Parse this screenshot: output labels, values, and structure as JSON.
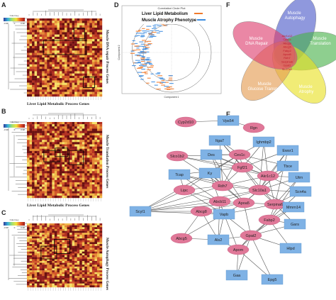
{
  "panels": {
    "A": {
      "letter": "A",
      "row_label": "Muscle DNA repair Process Genes",
      "col_label": "Liver Lipid Metabolic Process Genes"
    },
    "B": {
      "letter": "B",
      "row_label": "Muscle Translation Process Genes",
      "col_label": "Liver Lipid Metabolic Process Genes"
    },
    "C": {
      "letter": "C",
      "row_label": "Muscle Autophagy Process Genes",
      "col_label": "Liver Lipid Metabolic Process Genes"
    },
    "D": {
      "letter": "D",
      "title": "Correlation Circle Plot",
      "legend": [
        "Liver Lipid Metabolism",
        "Muscle Atrophy Phenotype"
      ],
      "xlabel": "Component 1",
      "ylabel": "Component 2"
    },
    "E": {
      "letter": "E"
    },
    "F": {
      "letter": "F"
    }
  },
  "colorkey": {
    "title": "Color key",
    "ticks": [
      "-0.98",
      "0",
      "0.98"
    ]
  },
  "colors": {
    "liver_node": "#e07898",
    "muscle_node": "#7fb2e5",
    "liver_legend": "#f07a2b",
    "muscle_legend": "#3d8de0"
  },
  "venn": {
    "sets": [
      {
        "name": "Muscle Autophagy",
        "color": "#4a58c8"
      },
      {
        "name": "Muscle Translation",
        "color": "#49b24a"
      },
      {
        "name": "Muscle Atrophy",
        "color": "#e8e022"
      },
      {
        "name": "Muscle Glucose Transport",
        "color": "#e39a4e"
      },
      {
        "name": "Muscle DNA Repair",
        "color": "#dd3d6e"
      }
    ],
    "center_genes": [
      "Akr1c12",
      "Ces1c",
      "Abcg8",
      "Abcg5",
      "Fabp2",
      "Apoa5",
      "Rdh7",
      "Serpina6",
      "Gpat2",
      "Slc10a1"
    ]
  },
  "network": {
    "nodes": [
      {
        "id": "Cyp2d10",
        "type": "liver"
      },
      {
        "id": "Vps54",
        "type": "muscle"
      },
      {
        "id": "Rgn",
        "type": "liver"
      },
      {
        "id": "Itga7",
        "type": "muscle"
      },
      {
        "id": "Ighmbp2",
        "type": "muscle"
      },
      {
        "id": "Slco1b2",
        "type": "liver"
      },
      {
        "id": "Des",
        "type": "muscle"
      },
      {
        "id": "Ces1c",
        "type": "liver"
      },
      {
        "id": "Ewsr1",
        "type": "muscle"
      },
      {
        "id": "Fgf21",
        "type": "liver"
      },
      {
        "id": "Tbce",
        "type": "muscle"
      },
      {
        "id": "Tcap",
        "type": "muscle"
      },
      {
        "id": "Ky",
        "type": "muscle"
      },
      {
        "id": "Akr1c12",
        "type": "liver"
      },
      {
        "id": "Utrn",
        "type": "muscle"
      },
      {
        "id": "Rdh7",
        "type": "liver"
      },
      {
        "id": "Slc10a1",
        "type": "liver"
      },
      {
        "id": "Scn4a",
        "type": "muscle"
      },
      {
        "id": "Lipc",
        "type": "liver"
      },
      {
        "id": "Abcb11",
        "type": "liver"
      },
      {
        "id": "Apoa5",
        "type": "liver"
      },
      {
        "id": "Serpina6",
        "type": "liver"
      },
      {
        "id": "Mmrn14",
        "type": "muscle"
      },
      {
        "id": "Scyl1",
        "type": "muscle"
      },
      {
        "id": "Abcg8",
        "type": "liver"
      },
      {
        "id": "Vapb",
        "type": "muscle"
      },
      {
        "id": "Fabp2",
        "type": "liver"
      },
      {
        "id": "Gars",
        "type": "muscle"
      },
      {
        "id": "Gpat2",
        "type": "liver"
      },
      {
        "id": "Abcg5",
        "type": "liver"
      },
      {
        "id": "Als2",
        "type": "muscle"
      },
      {
        "id": "Apom",
        "type": "liver"
      },
      {
        "id": "Hlpd",
        "type": "muscle"
      },
      {
        "id": "Gaa",
        "type": "muscle"
      },
      {
        "id": "Epg5",
        "type": "muscle"
      }
    ],
    "edges": [
      [
        "Cyp2d10",
        "Vps54"
      ],
      [
        "Vps54",
        "Rgn"
      ],
      [
        "Slco1b2",
        "Ces1c"
      ],
      [
        "Slco1b2",
        "Fgf21"
      ],
      [
        "Slco1b2",
        "Rdh7"
      ],
      [
        "Slco1b2",
        "Akr1c12"
      ],
      [
        "Des",
        "Ces1c"
      ],
      [
        "Des",
        "Fgf21"
      ],
      [
        "Des",
        "Akr1c12"
      ],
      [
        "Des",
        "Rdh7"
      ],
      [
        "Des",
        "Apoa5"
      ],
      [
        "Itga7",
        "Ces1c"
      ],
      [
        "Itga7",
        "Fgf21"
      ],
      [
        "Itga7",
        "Rdh7"
      ],
      [
        "Itga7",
        "Serpina6"
      ],
      [
        "Ighmbp2",
        "Ces1c"
      ],
      [
        "Ighmbp2",
        "Akr1c12"
      ],
      [
        "Ighmbp2",
        "Slc10a1"
      ],
      [
        "Ighmbp2",
        "Fgf21"
      ],
      [
        "Ewsr1",
        "Akr1c12"
      ],
      [
        "Ewsr1",
        "Fgf21"
      ],
      [
        "Ewsr1",
        "Slc10a1"
      ],
      [
        "Ewsr1",
        "Serpina6"
      ],
      [
        "Tbce",
        "Akr1c12"
      ],
      [
        "Tbce",
        "Slc10a1"
      ],
      [
        "Tbce",
        "Ces1c"
      ],
      [
        "Tbce",
        "Apoa5"
      ],
      [
        "Tcap",
        "Rdh7"
      ],
      [
        "Tcap",
        "Lipc"
      ],
      [
        "Tcap",
        "Abcb11"
      ],
      [
        "Tcap",
        "Fgf21"
      ],
      [
        "Tcap",
        "Slc10a1"
      ],
      [
        "Ky",
        "Rdh7"
      ],
      [
        "Ky",
        "Lipc"
      ],
      [
        "Ky",
        "Abcb11"
      ],
      [
        "Ky",
        "Ces1c"
      ],
      [
        "Ky",
        "Apoa5"
      ],
      [
        "Utrn",
        "Akr1c12"
      ],
      [
        "Utrn",
        "Slc10a1"
      ],
      [
        "Utrn",
        "Serpina6"
      ],
      [
        "Utrn",
        "Fabp2"
      ],
      [
        "Scn4a",
        "Slc10a1"
      ],
      [
        "Scn4a",
        "Serpina6"
      ],
      [
        "Scn4a",
        "Fabp2"
      ],
      [
        "Scn4a",
        "Akr1c12"
      ],
      [
        "Mmrn14",
        "Serpina6"
      ],
      [
        "Mmrn14",
        "Fabp2"
      ],
      [
        "Mmrn14",
        "Gpat2"
      ],
      [
        "Mmrn14",
        "Slc10a1"
      ],
      [
        "Scyl1",
        "Lipc"
      ],
      [
        "Scyl1",
        "Abcb11"
      ],
      [
        "Scyl1",
        "Abcg8"
      ],
      [
        "Scyl1",
        "Rdh7"
      ],
      [
        "Scyl1",
        "Apoa5"
      ],
      [
        "Scyl1",
        "Slc10a1"
      ],
      [
        "Scyl1",
        "Ces1c"
      ],
      [
        "Scyl1",
        "Vapb"
      ],
      [
        "Vapb",
        "Abcg8"
      ],
      [
        "Vapb",
        "Apoa5"
      ],
      [
        "Vapb",
        "Abcb11"
      ],
      [
        "Vapb",
        "Serpina6"
      ],
      [
        "Vapb",
        "Gpat2"
      ],
      [
        "Vapb",
        "Lipc"
      ],
      [
        "Gars",
        "Fabp2"
      ],
      [
        "Gars",
        "Serpina6"
      ],
      [
        "Gars",
        "Gpat2"
      ],
      [
        "Als2",
        "Abcg8"
      ],
      [
        "Als2",
        "Vapb"
      ],
      [
        "Als2",
        "Gpat2"
      ],
      [
        "Als2",
        "Apom"
      ],
      [
        "Als2",
        "Abcb11"
      ],
      [
        "Hlpd",
        "Gpat2"
      ],
      [
        "Hlpd",
        "Fabp2"
      ],
      [
        "Gaa",
        "Apom"
      ],
      [
        "Gaa",
        "Gpat2"
      ],
      [
        "Epg5",
        "Apom"
      ],
      [
        "Epg5",
        "Gpat2"
      ],
      [
        "Abcg5",
        "Vapb"
      ],
      [
        "Abcg5",
        "Abcg8"
      ],
      [
        "Abcg5",
        "Als2"
      ],
      [
        "Apom",
        "Gpat2"
      ],
      [
        "Apom",
        "Vapb"
      ],
      [
        "Apom",
        "Fabp2"
      ],
      [
        "Rdh7",
        "Slc10a1"
      ],
      [
        "Rdh7",
        "Akr1c12"
      ],
      [
        "Rdh7",
        "Apoa5"
      ],
      [
        "Rdh7",
        "Fgf21"
      ],
      [
        "Fgf21",
        "Ces1c"
      ],
      [
        "Fgf21",
        "Akr1c12"
      ],
      [
        "Fgf21",
        "Slc10a1"
      ],
      [
        "Akr1c12",
        "Slc10a1"
      ],
      [
        "Akr1c12",
        "Serpina6"
      ],
      [
        "Slc10a1",
        "Serpina6"
      ],
      [
        "Slc10a1",
        "Apoa5"
      ],
      [
        "Slc10a1",
        "Abcb11"
      ],
      [
        "Abcb11",
        "Apoa5"
      ],
      [
        "Abcb11",
        "Lipc"
      ],
      [
        "Apoa5",
        "Serpina6"
      ],
      [
        "Apoa5",
        "Abcg8"
      ],
      [
        "Serpina6",
        "Fabp2"
      ],
      [
        "Fabp2",
        "Gpat2"
      ],
      [
        "Gpat2",
        "Apoa5"
      ],
      [
        "Lipc",
        "Rdh7"
      ],
      [
        "Ces1c",
        "Rdh7"
      ],
      [
        "Ces1c",
        "Akr1c12"
      ]
    ]
  },
  "heatmap_blocks": {
    "A": [
      [
        35,
        45,
        60,
        20
      ],
      [
        100,
        20,
        15,
        15
      ],
      [
        120,
        120,
        16,
        15
      ]
    ],
    "B": [
      [
        36,
        60,
        23,
        16
      ],
      [
        60,
        55,
        18,
        12
      ],
      [
        90,
        60,
        20,
        20
      ]
    ],
    "C": [
      [
        30,
        57,
        22,
        18
      ],
      [
        58,
        40,
        22,
        20
      ]
    ]
  }
}
